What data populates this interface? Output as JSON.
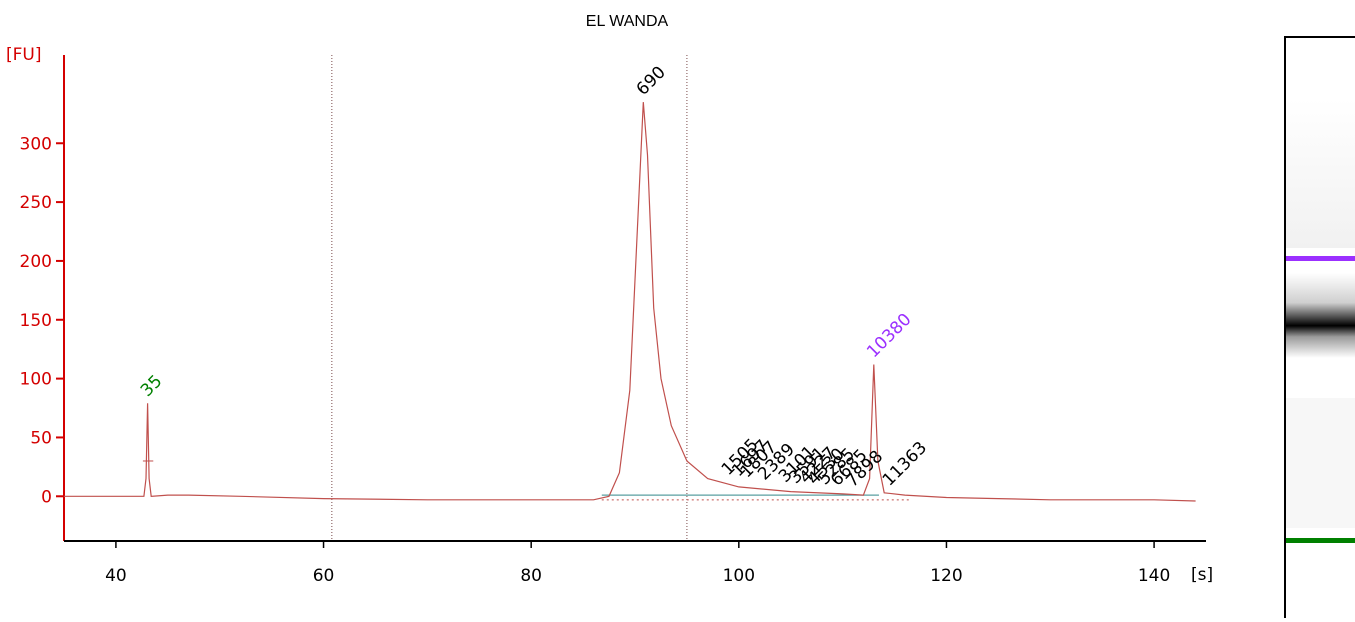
{
  "chart_data": {
    "type": "line",
    "title": "EL WANDA",
    "ylabel": "[FU]",
    "xlabel": "[s]",
    "xlim": [
      35,
      145
    ],
    "ylim": [
      -38,
      375
    ],
    "x_ticks": [
      40,
      60,
      80,
      100,
      120,
      140
    ],
    "y_ticks": [
      0,
      50,
      100,
      150,
      200,
      250,
      300
    ],
    "vertical_markers": [
      60.8,
      95
    ],
    "colors": {
      "axis": "#d40000",
      "trace": "#c0504d",
      "marker_lower": "#008000",
      "marker_upper": "#9b30ff",
      "baseline": "#5a9fa0",
      "labels": "#000000"
    },
    "series": [
      {
        "values": [
          [
            35,
            0
          ],
          [
            42.7,
            0
          ],
          [
            42.9,
            15
          ],
          [
            43.05,
            79
          ],
          [
            43.2,
            15
          ],
          [
            43.4,
            0
          ],
          [
            45,
            1
          ],
          [
            47,
            1
          ],
          [
            52,
            0
          ],
          [
            60,
            -2
          ],
          [
            70,
            -3
          ],
          [
            80,
            -3
          ],
          [
            86,
            -3
          ],
          [
            87.5,
            0
          ],
          [
            88.5,
            20
          ],
          [
            89.5,
            90
          ],
          [
            90.3,
            240
          ],
          [
            90.8,
            335
          ],
          [
            91.2,
            290
          ],
          [
            91.8,
            160
          ],
          [
            92.5,
            100
          ],
          [
            93.5,
            60
          ],
          [
            95,
            30
          ],
          [
            97,
            15
          ],
          [
            100,
            8
          ],
          [
            105,
            4
          ],
          [
            110,
            2
          ],
          [
            112,
            1
          ],
          [
            112.6,
            15
          ],
          [
            113,
            112
          ],
          [
            113.4,
            30
          ],
          [
            114,
            3
          ],
          [
            116,
            1
          ],
          [
            120,
            -1
          ],
          [
            125,
            -2
          ],
          [
            130,
            -3
          ],
          [
            140,
            -3
          ],
          [
            144,
            -4
          ]
        ]
      }
    ],
    "peaks": [
      {
        "label": "35",
        "x": 43.05,
        "y": 79,
        "color": "marker_lower"
      },
      {
        "label": "690",
        "x": 90.8,
        "y": 335,
        "color": "labels"
      },
      {
        "label": "10380",
        "x": 113.0,
        "y": 112,
        "color": "marker_upper"
      },
      {
        "label": "1505",
        "x": 99.0,
        "y": 12,
        "color": "labels"
      },
      {
        "label": "1697",
        "x": 100.0,
        "y": 11,
        "color": "labels"
      },
      {
        "label": "1807",
        "x": 100.8,
        "y": 10,
        "color": "labels"
      },
      {
        "label": "2389",
        "x": 102.5,
        "y": 8,
        "color": "labels"
      },
      {
        "label": "3101",
        "x": 104.5,
        "y": 6,
        "color": "labels"
      },
      {
        "label": "3591",
        "x": 105.5,
        "y": 5,
        "color": "labels"
      },
      {
        "label": "4227",
        "x": 106.5,
        "y": 5,
        "color": "labels"
      },
      {
        "label": "4530",
        "x": 107.3,
        "y": 4,
        "color": "labels"
      },
      {
        "label": "5285",
        "x": 108.3,
        "y": 4,
        "color": "labels"
      },
      {
        "label": "6685",
        "x": 109.5,
        "y": 3,
        "color": "labels"
      },
      {
        "label": "7898",
        "x": 111.0,
        "y": 2,
        "color": "labels"
      },
      {
        "label": "11363",
        "x": 114.5,
        "y": 3,
        "color": "labels"
      }
    ]
  },
  "gel": {
    "upper_marker_color": "#9b30ff",
    "lower_marker_color": "#008000",
    "band_level_690": "strong"
  }
}
